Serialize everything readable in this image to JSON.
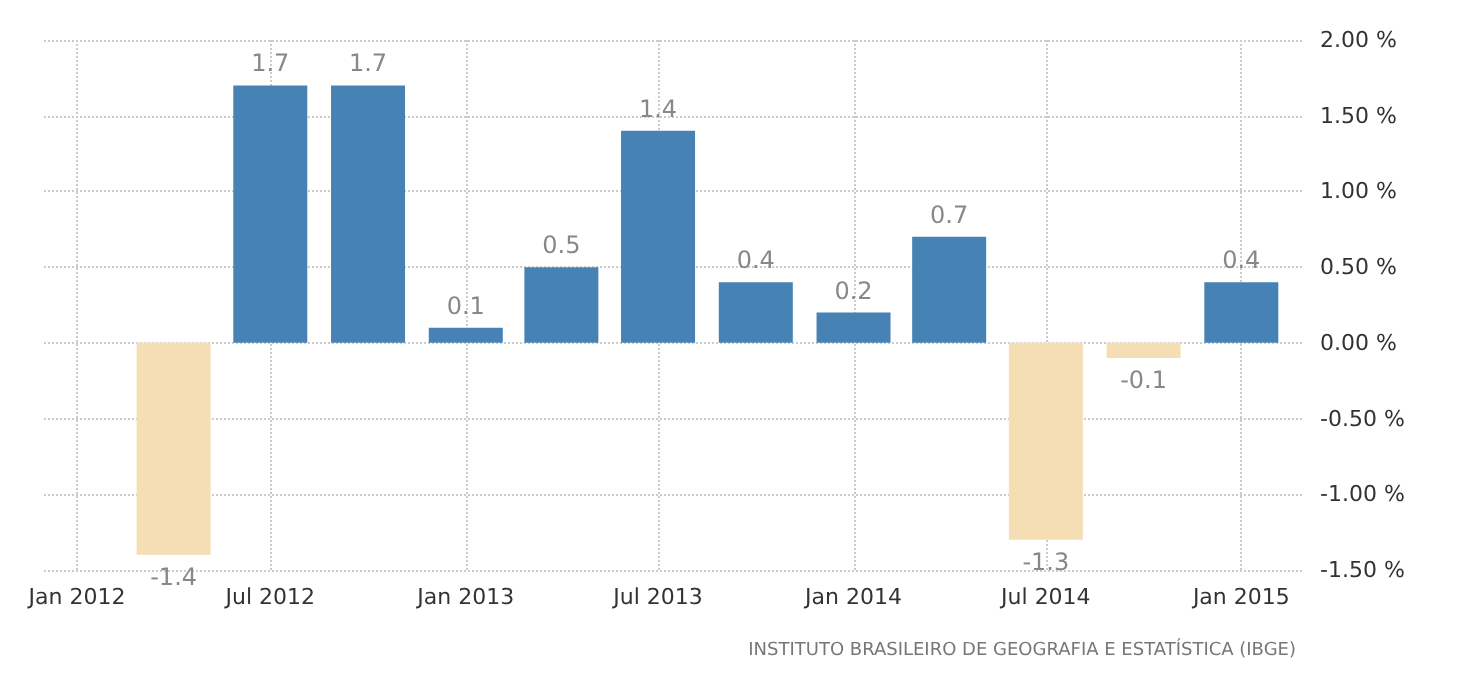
{
  "chart_data": {
    "type": "bar",
    "x": [
      "2012-04",
      "2012-07",
      "2012-10",
      "2013-01",
      "2013-04",
      "2013-07",
      "2013-10",
      "2014-01",
      "2014-04",
      "2014-07",
      "2014-10",
      "2015-01"
    ],
    "values": [
      -1.4,
      1.7,
      1.7,
      0.1,
      0.5,
      1.4,
      0.4,
      0.2,
      0.7,
      -1.3,
      -0.1,
      0.4
    ],
    "colors": [
      "#f5deb3",
      "#4682b4",
      "#4682b4",
      "#4682b4",
      "#4682b4",
      "#4682b4",
      "#4682b4",
      "#4682b4",
      "#4682b4",
      "#f5deb3",
      "#f5deb3",
      "#4682b4"
    ],
    "xlim": [
      "2011-12",
      "2015-03"
    ],
    "xticks": [
      {
        "value": "2012-01",
        "label": "Jan 2012"
      },
      {
        "value": "2012-07",
        "label": "Jul 2012"
      },
      {
        "value": "2013-01",
        "label": "Jan 2013"
      },
      {
        "value": "2013-07",
        "label": "Jul 2013"
      },
      {
        "value": "2014-01",
        "label": "Jan 2014"
      },
      {
        "value": "2014-07",
        "label": "Jul 2014"
      },
      {
        "value": "2015-01",
        "label": "Jan 2015"
      }
    ],
    "ylim": [
      -1.5,
      2
    ],
    "yticks": [
      {
        "value": -1.5,
        "label": "-1.50 %"
      },
      {
        "value": -1,
        "label": "-1.00 %"
      },
      {
        "value": -0.5,
        "label": "-0.50 %"
      },
      {
        "value": 0,
        "label": "0.00 %"
      },
      {
        "value": 0.5,
        "label": "0.50 %"
      },
      {
        "value": 1,
        "label": "1.00 %"
      },
      {
        "value": 1.5,
        "label": "1.50 %"
      },
      {
        "value": 2,
        "label": "2.00 %"
      }
    ],
    "grid": true,
    "data_labels": true,
    "annotations": [
      "INSTITUTO BRASILEIRO DE GEOGRAFIA E ESTATÍSTICA (IBGE)"
    ]
  }
}
